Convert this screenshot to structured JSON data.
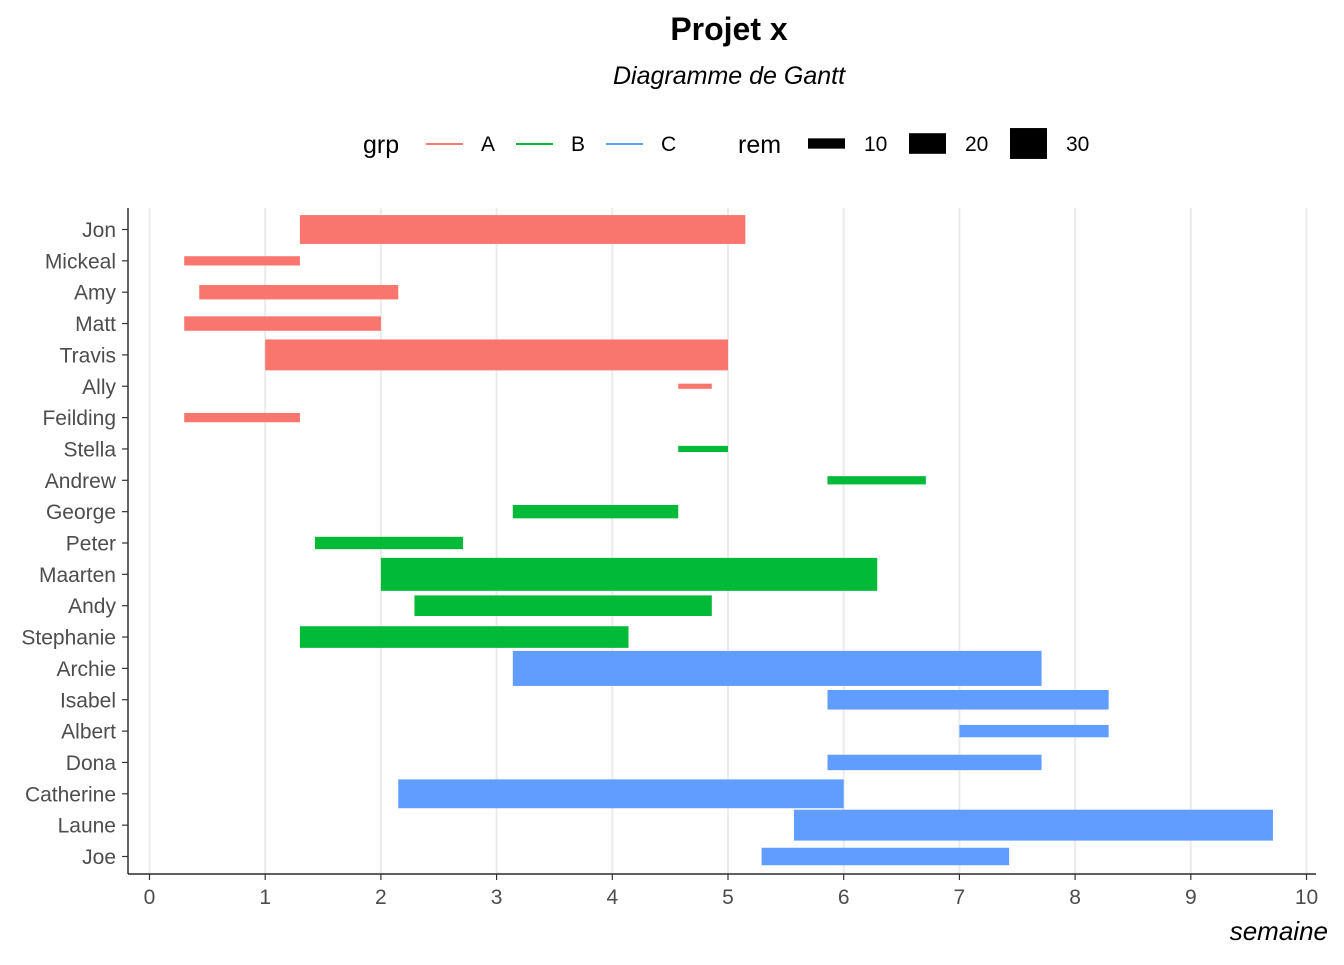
{
  "chart_data": {
    "type": "gantt",
    "title": "Projet x",
    "subtitle": "Diagramme de Gantt",
    "xlabel": "semaine",
    "ylabel": "",
    "xlim": [
      0,
      10
    ],
    "x_ticks": [
      0,
      1,
      2,
      3,
      4,
      5,
      6,
      7,
      8,
      9,
      10
    ],
    "grid": "vertical major lines",
    "legend_position": "top",
    "legend": {
      "color_title": "grp",
      "groups": [
        {
          "name": "A",
          "color": "#F8766D"
        },
        {
          "name": "B",
          "color": "#00BA38"
        },
        {
          "name": "C",
          "color": "#619CFF"
        }
      ],
      "size_title": "rem",
      "sizes": [
        10,
        20,
        30
      ]
    },
    "tasks": [
      {
        "name": "Jon",
        "grp": "A",
        "start": 1.3,
        "end": 5.15,
        "rem": 28
      },
      {
        "name": "Mickeal",
        "grp": "A",
        "start": 0.3,
        "end": 1.3,
        "rem": 9
      },
      {
        "name": "Amy",
        "grp": "A",
        "start": 0.43,
        "end": 2.15,
        "rem": 14
      },
      {
        "name": "Matt",
        "grp": "A",
        "start": 0.3,
        "end": 2.0,
        "rem": 14
      },
      {
        "name": "Travis",
        "grp": "A",
        "start": 1.0,
        "end": 5.0,
        "rem": 30
      },
      {
        "name": "Ally",
        "grp": "A",
        "start": 4.57,
        "end": 4.86,
        "rem": 5
      },
      {
        "name": "Feilding",
        "grp": "A",
        "start": 0.3,
        "end": 1.3,
        "rem": 9
      },
      {
        "name": "Stella",
        "grp": "B",
        "start": 4.57,
        "end": 5.0,
        "rem": 6
      },
      {
        "name": "Andrew",
        "grp": "B",
        "start": 5.86,
        "end": 6.71,
        "rem": 8
      },
      {
        "name": "George",
        "grp": "B",
        "start": 3.14,
        "end": 4.57,
        "rem": 13
      },
      {
        "name": "Peter",
        "grp": "B",
        "start": 1.43,
        "end": 2.71,
        "rem": 12
      },
      {
        "name": "Maarten",
        "grp": "B",
        "start": 2.0,
        "end": 6.29,
        "rem": 32
      },
      {
        "name": "Andy",
        "grp": "B",
        "start": 2.29,
        "end": 4.86,
        "rem": 20
      },
      {
        "name": "Stephanie",
        "grp": "B",
        "start": 1.3,
        "end": 4.14,
        "rem": 21
      },
      {
        "name": "Archie",
        "grp": "C",
        "start": 3.14,
        "end": 7.71,
        "rem": 34
      },
      {
        "name": "Isabel",
        "grp": "C",
        "start": 5.86,
        "end": 8.29,
        "rem": 19
      },
      {
        "name": "Albert",
        "grp": "C",
        "start": 7.0,
        "end": 8.29,
        "rem": 12
      },
      {
        "name": "Dona",
        "grp": "C",
        "start": 5.86,
        "end": 7.71,
        "rem": 15
      },
      {
        "name": "Catherine",
        "grp": "C",
        "start": 2.15,
        "end": 6.0,
        "rem": 28
      },
      {
        "name": "Laune",
        "grp": "C",
        "start": 5.57,
        "end": 9.71,
        "rem": 30
      },
      {
        "name": "Joe",
        "grp": "C",
        "start": 5.29,
        "end": 7.43,
        "rem": 17
      }
    ]
  }
}
